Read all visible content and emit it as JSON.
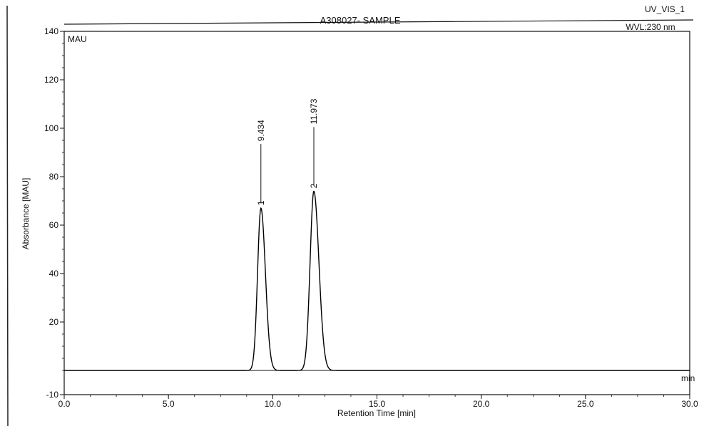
{
  "header": {
    "title": "A308027- SAMPLE",
    "detector": "UV_VIS_1",
    "wavelength": "WVL:230 nm",
    "y_unit": "MAU",
    "x_unit": "min"
  },
  "chart_data": {
    "type": "line",
    "xlabel": "Retention Time [min]",
    "ylabel": "Absorbance [MAU]",
    "xlim": [
      0.0,
      30.0
    ],
    "ylim": [
      -10,
      140
    ],
    "x_ticks": [
      "0.0",
      "5.0",
      "10.0",
      "15.0",
      "20.0",
      "25.0",
      "30.0"
    ],
    "y_ticks": [
      "-10",
      "20",
      "40",
      "60",
      "80",
      "100",
      "120",
      "140"
    ],
    "grid": false,
    "baseline": 0,
    "peaks": [
      {
        "number": "1",
        "retention_time": "9.434",
        "rt": 9.434,
        "height": 67,
        "width": 0.16
      },
      {
        "number": "2",
        "retention_time": "11.973",
        "rt": 11.973,
        "height": 74,
        "width": 0.18
      }
    ]
  }
}
